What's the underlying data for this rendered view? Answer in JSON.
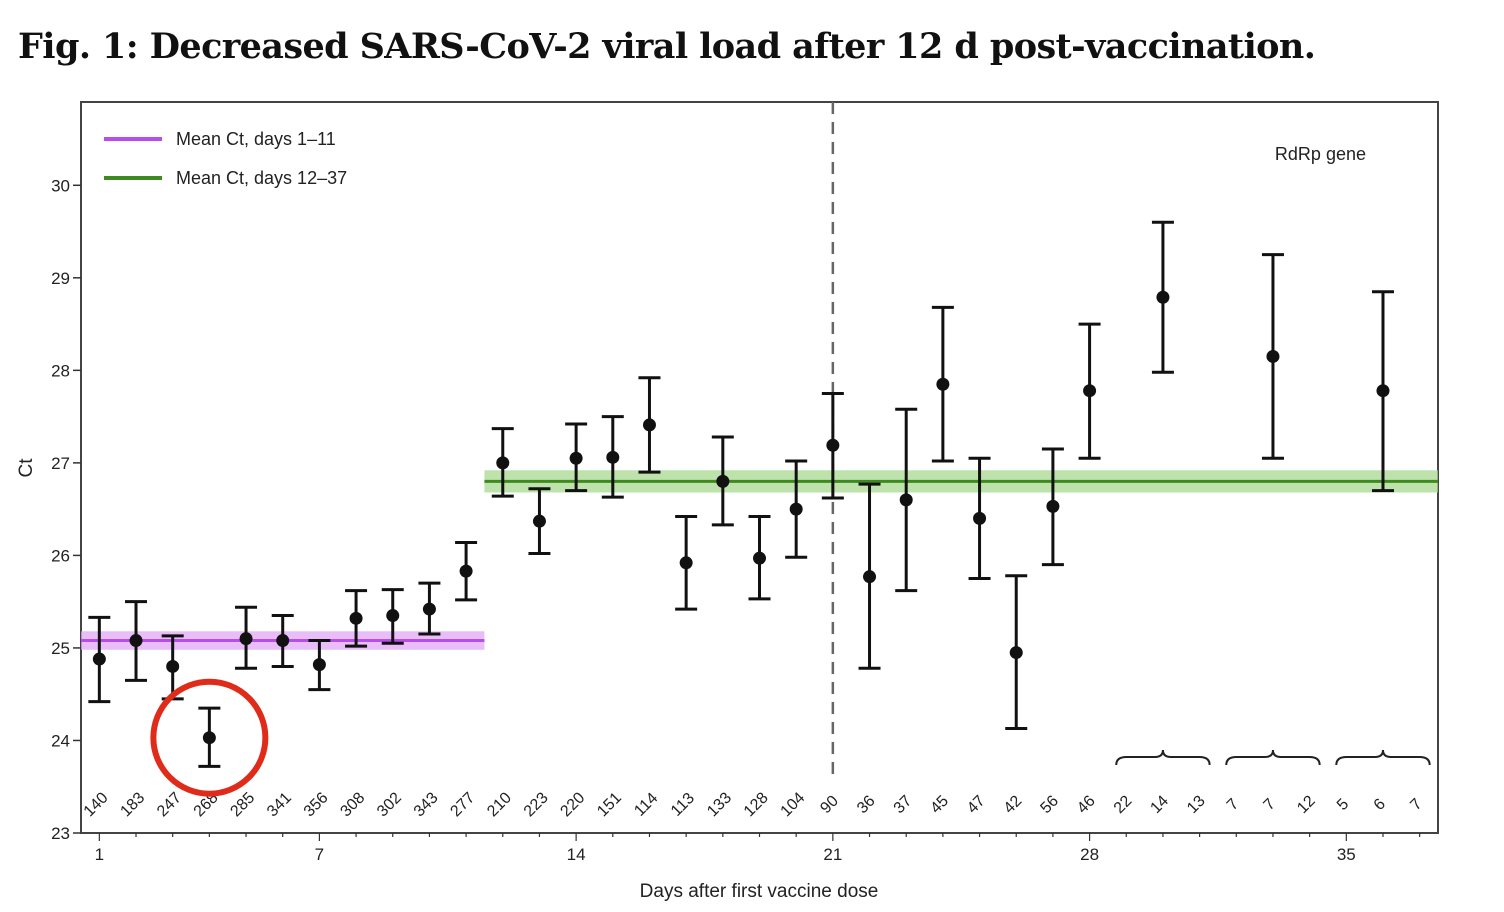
{
  "title": "Fig. 1: Decreased SARS-CoV-2 viral load after 12 d post-vaccination.",
  "chart_data": {
    "type": "scatter",
    "title": "Fig. 1: Decreased SARS-CoV-2 viral load after 12 d post-vaccination.",
    "xlabel": "Days after first vaccine dose",
    "ylabel": "Ct",
    "xlim": [
      0.5,
      37.5
    ],
    "ylim": [
      23,
      30.9
    ],
    "xticks": [
      1,
      7,
      14,
      21,
      28,
      35
    ],
    "yticks": [
      23,
      24,
      25,
      26,
      27,
      28,
      29,
      30
    ],
    "annotation": "RdRp gene",
    "legend": [
      {
        "label": "Mean Ct, days 1–11",
        "color": "#b84ee8"
      },
      {
        "label": "Mean Ct, days 12–37",
        "color": "#3f8a1f"
      }
    ],
    "mean_lines": [
      {
        "name": "Mean Ct, days 1–11",
        "x_start": 0.5,
        "x_end": 11.5,
        "value": 25.08,
        "band_low": 24.98,
        "band_high": 25.18,
        "color": "#b84ee8",
        "band_color": "#e2a8f5"
      },
      {
        "name": "Mean Ct, days 12–37",
        "x_start": 11.5,
        "x_end": 37.5,
        "value": 26.8,
        "band_low": 26.68,
        "band_high": 26.92,
        "color": "#3f8a1f",
        "band_color": "#a8d890"
      }
    ],
    "reference_line_x": 21,
    "points": [
      {
        "x": 1,
        "y": 24.88,
        "low": 24.42,
        "high": 25.33
      },
      {
        "x": 2,
        "y": 25.08,
        "low": 24.65,
        "high": 25.5
      },
      {
        "x": 3,
        "y": 24.8,
        "low": 24.45,
        "high": 25.13
      },
      {
        "x": 4,
        "y": 24.03,
        "low": 23.72,
        "high": 24.35
      },
      {
        "x": 5,
        "y": 25.1,
        "low": 24.78,
        "high": 25.44
      },
      {
        "x": 6,
        "y": 25.08,
        "low": 24.8,
        "high": 25.35
      },
      {
        "x": 7,
        "y": 24.82,
        "low": 24.55,
        "high": 25.08
      },
      {
        "x": 8,
        "y": 25.32,
        "low": 25.02,
        "high": 25.62
      },
      {
        "x": 9,
        "y": 25.35,
        "low": 25.05,
        "high": 25.63
      },
      {
        "x": 10,
        "y": 25.42,
        "low": 25.15,
        "high": 25.7
      },
      {
        "x": 11,
        "y": 25.83,
        "low": 25.52,
        "high": 26.14
      },
      {
        "x": 12,
        "y": 27.0,
        "low": 26.64,
        "high": 27.37
      },
      {
        "x": 13,
        "y": 26.37,
        "low": 26.02,
        "high": 26.72
      },
      {
        "x": 14,
        "y": 27.05,
        "low": 26.7,
        "high": 27.42
      },
      {
        "x": 15,
        "y": 27.06,
        "low": 26.63,
        "high": 27.5
      },
      {
        "x": 16,
        "y": 27.41,
        "low": 26.9,
        "high": 27.92
      },
      {
        "x": 17,
        "y": 25.92,
        "low": 25.42,
        "high": 26.42
      },
      {
        "x": 18,
        "y": 26.8,
        "low": 26.33,
        "high": 27.28
      },
      {
        "x": 19,
        "y": 25.97,
        "low": 25.53,
        "high": 26.42
      },
      {
        "x": 20,
        "y": 26.5,
        "low": 25.98,
        "high": 27.02
      },
      {
        "x": 21,
        "y": 27.19,
        "low": 26.62,
        "high": 27.75
      },
      {
        "x": 22,
        "y": 25.77,
        "low": 24.78,
        "high": 26.77
      },
      {
        "x": 23,
        "y": 26.6,
        "low": 25.62,
        "high": 27.58
      },
      {
        "x": 24,
        "y": 27.85,
        "low": 27.02,
        "high": 28.68
      },
      {
        "x": 25,
        "y": 26.4,
        "low": 25.75,
        "high": 27.05
      },
      {
        "x": 26,
        "y": 24.95,
        "low": 24.13,
        "high": 25.78
      },
      {
        "x": 27,
        "y": 26.53,
        "low": 25.9,
        "high": 27.15
      },
      {
        "x": 28,
        "y": 27.78,
        "low": 27.05,
        "high": 28.5
      },
      {
        "x": 30,
        "y": 28.79,
        "low": 27.98,
        "high": 29.6
      },
      {
        "x": 33,
        "y": 28.15,
        "low": 27.05,
        "high": 29.25
      },
      {
        "x": 36,
        "y": 27.78,
        "low": 26.7,
        "high": 28.85
      }
    ],
    "n_labels": [
      {
        "x": 1,
        "text": "140"
      },
      {
        "x": 2,
        "text": "183"
      },
      {
        "x": 3,
        "text": "247"
      },
      {
        "x": 4,
        "text": "268"
      },
      {
        "x": 5,
        "text": "285"
      },
      {
        "x": 6,
        "text": "341"
      },
      {
        "x": 7,
        "text": "356"
      },
      {
        "x": 8,
        "text": "308"
      },
      {
        "x": 9,
        "text": "302"
      },
      {
        "x": 10,
        "text": "343"
      },
      {
        "x": 11,
        "text": "277"
      },
      {
        "x": 12,
        "text": "210"
      },
      {
        "x": 13,
        "text": "223"
      },
      {
        "x": 14,
        "text": "220"
      },
      {
        "x": 15,
        "text": "151"
      },
      {
        "x": 16,
        "text": "114"
      },
      {
        "x": 17,
        "text": "113"
      },
      {
        "x": 18,
        "text": "133"
      },
      {
        "x": 19,
        "text": "128"
      },
      {
        "x": 20,
        "text": "104"
      },
      {
        "x": 21,
        "text": "90"
      },
      {
        "x": 22,
        "text": "36"
      },
      {
        "x": 23,
        "text": "37"
      },
      {
        "x": 24,
        "text": "45"
      },
      {
        "x": 25,
        "text": "47"
      },
      {
        "x": 26,
        "text": "42"
      },
      {
        "x": 27,
        "text": "56"
      },
      {
        "x": 28,
        "text": "46"
      },
      {
        "x": 29,
        "text": "22"
      },
      {
        "x": 30,
        "text": "14"
      },
      {
        "x": 31,
        "text": "13"
      },
      {
        "x": 32,
        "text": "7"
      },
      {
        "x": 33,
        "text": "7"
      },
      {
        "x": 34,
        "text": "12"
      },
      {
        "x": 35,
        "text": "5"
      },
      {
        "x": 36,
        "text": "6"
      },
      {
        "x": 37,
        "text": "7"
      }
    ],
    "braces": [
      {
        "x_start": 29,
        "x_end": 31
      },
      {
        "x_start": 32,
        "x_end": 34
      },
      {
        "x_start": 35,
        "x_end": 37
      }
    ],
    "highlight": {
      "x": 4,
      "y": 24.03,
      "color": "#e02a1a"
    }
  }
}
